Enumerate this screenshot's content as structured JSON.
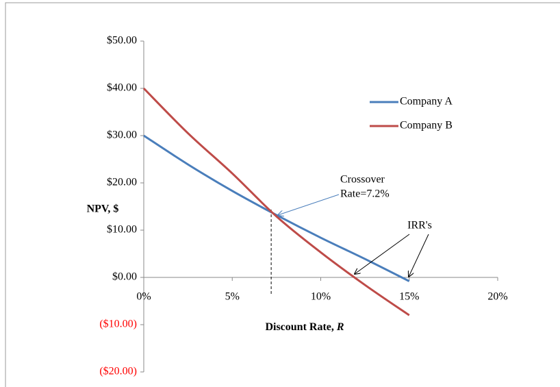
{
  "chart_data": {
    "type": "line",
    "y_label": "NPV, $",
    "x_label": "Discount Rate, ",
    "x_label_var": "R",
    "x": [
      0,
      2.5,
      5,
      7.5,
      10,
      12.5,
      15
    ],
    "series": [
      {
        "name": "Company A",
        "color": "#4a7ebb",
        "values": [
          30,
          23.9,
          18.3,
          13.2,
          8.4,
          3.9,
          -0.8
        ]
      },
      {
        "name": "Company B",
        "color": "#be4b48",
        "values": [
          40,
          30.5,
          22,
          12.9,
          5.3,
          -1.6,
          -8
        ]
      }
    ],
    "xlim": [
      0,
      20
    ],
    "xticks": [
      {
        "value": 0,
        "label": "0%"
      },
      {
        "value": 5,
        "label": "5%"
      },
      {
        "value": 10,
        "label": "10%"
      },
      {
        "value": 15,
        "label": "15%"
      },
      {
        "value": 20,
        "label": "20%"
      }
    ],
    "ylim": [
      -20,
      50
    ],
    "yticks": [
      {
        "value": -20,
        "label": "($20.00)"
      },
      {
        "value": -10,
        "label": "($10.00)"
      },
      {
        "value": 0,
        "label": "$0.00"
      },
      {
        "value": 10,
        "label": "$10.00"
      },
      {
        "value": 20,
        "label": "$20.00"
      },
      {
        "value": 30,
        "label": "$30.00"
      },
      {
        "value": 40,
        "label": "$40.00"
      },
      {
        "value": 50,
        "label": "$50.00"
      }
    ],
    "negative_tick_color": "#ff0000",
    "legend": "right",
    "crossover_rate": 7.2,
    "annotations": [
      "Crossover",
      "Rate=7.2%",
      "IRR's"
    ]
  }
}
